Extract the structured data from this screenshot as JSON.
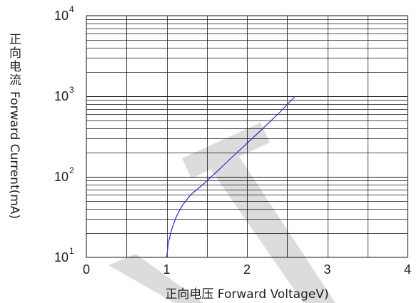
{
  "chart_data": {
    "type": "line",
    "xlabel": "正向电压 Forward VoltageV)",
    "ylabel_cn": "正向电流",
    "ylabel_en": "Forward Current(mA)",
    "xlim": [
      0,
      4
    ],
    "ylim": [
      10,
      10000
    ],
    "y_scale": "log",
    "grid": true,
    "x_ticks": [
      "0",
      "1",
      "2",
      "3",
      "4"
    ],
    "y_ticks": [
      {
        "base": "10",
        "exp": "1",
        "value": 10
      },
      {
        "base": "10",
        "exp": "2",
        "value": 100
      },
      {
        "base": "10",
        "exp": "3",
        "value": 1000
      },
      {
        "base": "10",
        "exp": "4",
        "value": 10000
      }
    ],
    "series": [
      {
        "color": "#2b2bd6",
        "x": [
          1.0,
          1.02,
          1.06,
          1.12,
          1.2,
          1.3,
          1.45,
          1.6,
          1.8,
          2.0,
          2.2,
          2.4,
          2.6
        ],
        "y": [
          10,
          15,
          22,
          32,
          45,
          60,
          80,
          110,
          170,
          260,
          400,
          620,
          1000
        ]
      }
    ],
    "watermark_color": "#dcdcdc"
  }
}
